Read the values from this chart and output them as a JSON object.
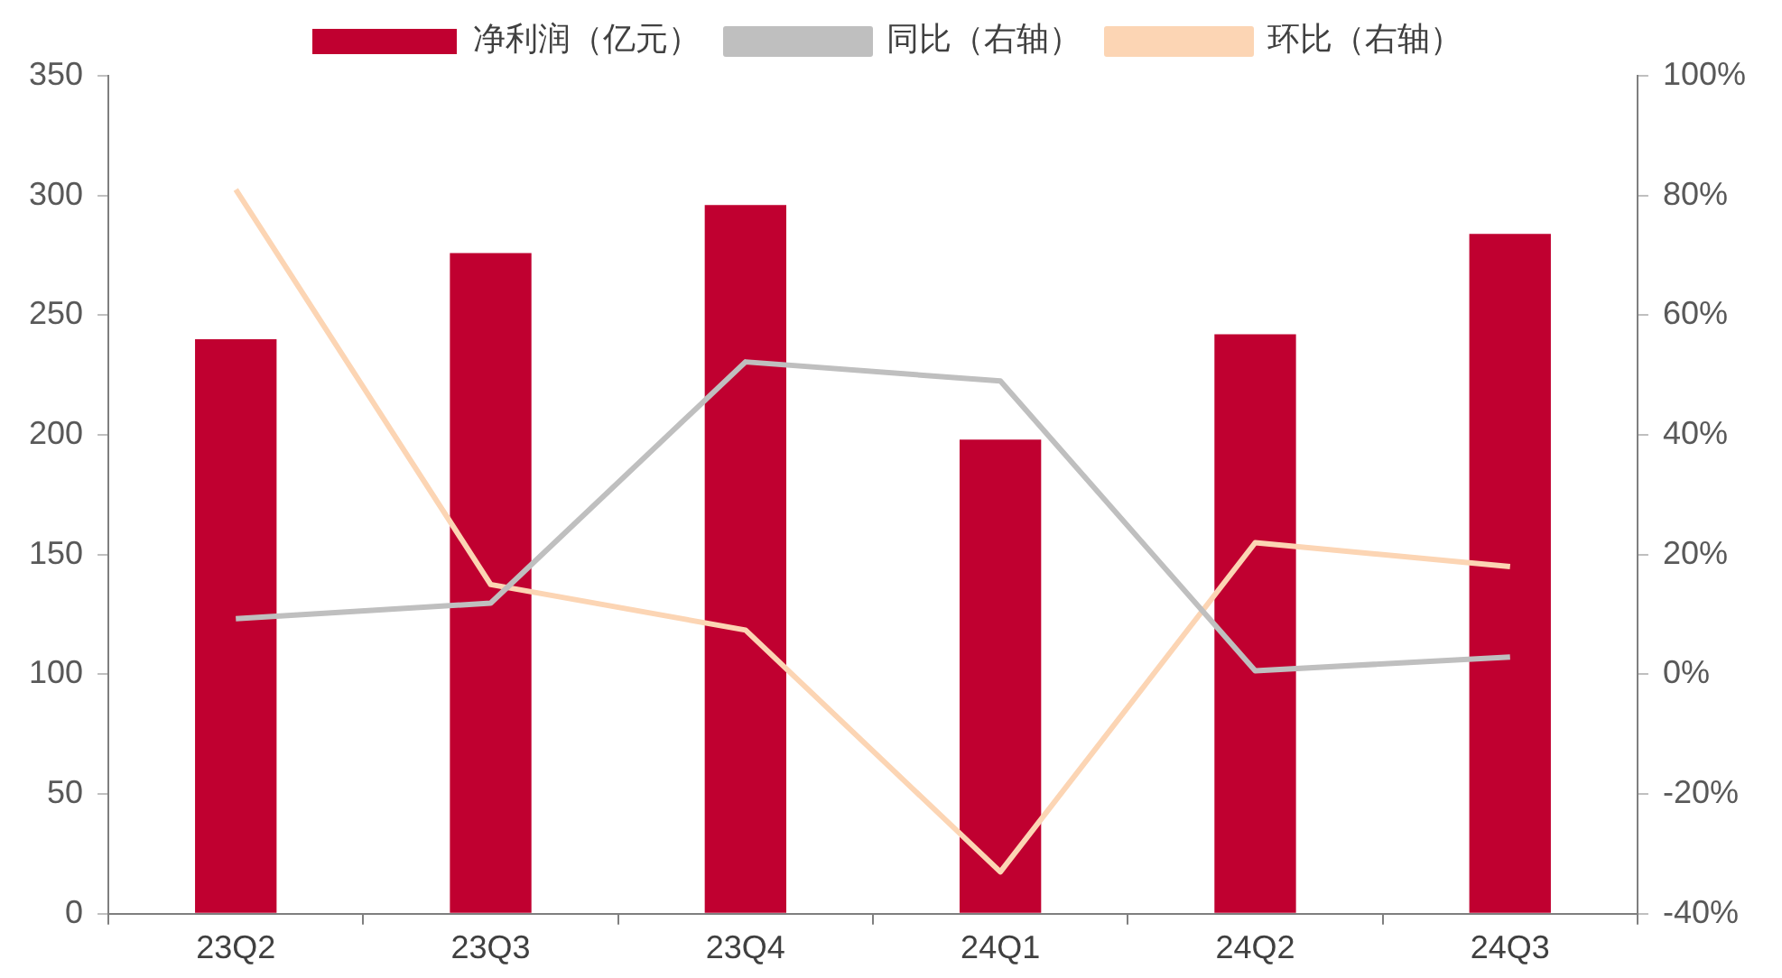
{
  "chart_data": {
    "type": "bar",
    "categories": [
      "23Q2",
      "23Q3",
      "23Q4",
      "24Q1",
      "24Q2",
      "24Q3"
    ],
    "series": [
      {
        "name": "净利润（亿元）",
        "color": "#c00030",
        "values": [
          240,
          276,
          296,
          198,
          242,
          284
        ]
      },
      {
        "name": "同比（右轴）",
        "type": "line",
        "axis": "y2",
        "color": "#bfbfbf",
        "values": [
          9.3,
          11.9,
          52.2,
          49,
          0.6,
          2.9
        ]
      },
      {
        "name": "环比（右轴）",
        "type": "line",
        "axis": "y2",
        "color": "#fcd5b4",
        "values": [
          81,
          15,
          7.4,
          -33,
          22,
          18
        ]
      }
    ],
    "ylim": [
      0,
      350
    ],
    "yticks": [
      0,
      50,
      100,
      150,
      200,
      250,
      300,
      350
    ],
    "y2lim": [
      -40,
      100
    ],
    "y2ticks": [
      {
        "value": -40,
        "label": "-40%"
      },
      {
        "value": -20,
        "label": "-20%"
      },
      {
        "value": 0,
        "label": "0%"
      },
      {
        "value": 20,
        "label": "20%"
      },
      {
        "value": 40,
        "label": "40%"
      },
      {
        "value": 60,
        "label": "60%"
      },
      {
        "value": 80,
        "label": "80%"
      },
      {
        "value": 100,
        "label": "100%"
      }
    ],
    "grid": false,
    "legend": "top",
    "marker": "none",
    "line_style": "solid"
  }
}
